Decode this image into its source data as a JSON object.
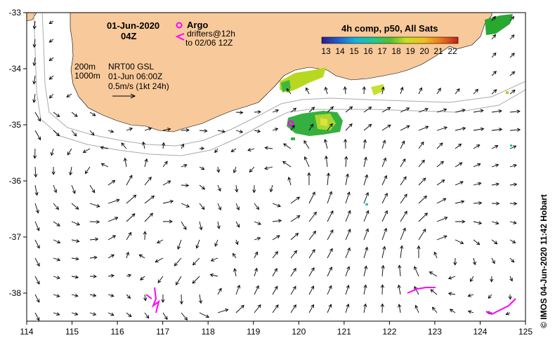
{
  "map": {
    "date": "01-Jun-2020",
    "hour": "04Z",
    "argo_label": "Argo",
    "drifters_label": "drifters@12h",
    "drifters_to": "to 02/06 12Z",
    "isobath_200": "200m",
    "isobath_1000": "1000m",
    "product": "NRT00 GSL",
    "product_time": "01-Jun 06:00Z",
    "arrow_scale": "0.5m/s (1kt 24h)",
    "credit": "© IMOS 04-Jun-2020 11:42 Hobart",
    "colorbar": {
      "title": "4h comp, p50, All Sats",
      "ticks": [
        "13",
        "14",
        "15",
        "16",
        "17",
        "18",
        "19",
        "20",
        "21",
        "22"
      ]
    },
    "lon_ticks": [
      "114",
      "115",
      "116",
      "117",
      "118",
      "119",
      "120",
      "121",
      "122",
      "123",
      "124",
      "125"
    ],
    "lat_ticks": [
      "-33",
      "-34",
      "-35",
      "-36",
      "-37",
      "-38"
    ],
    "lon_range": [
      114,
      125
    ],
    "lat_range": [
      -38.5,
      -33
    ],
    "colors": {
      "land": "#f8c99a",
      "argo": "#ff00ff",
      "drifter": "#ff00ff",
      "isobath": "#aaaaaa",
      "arrow": "#000000"
    }
  }
}
